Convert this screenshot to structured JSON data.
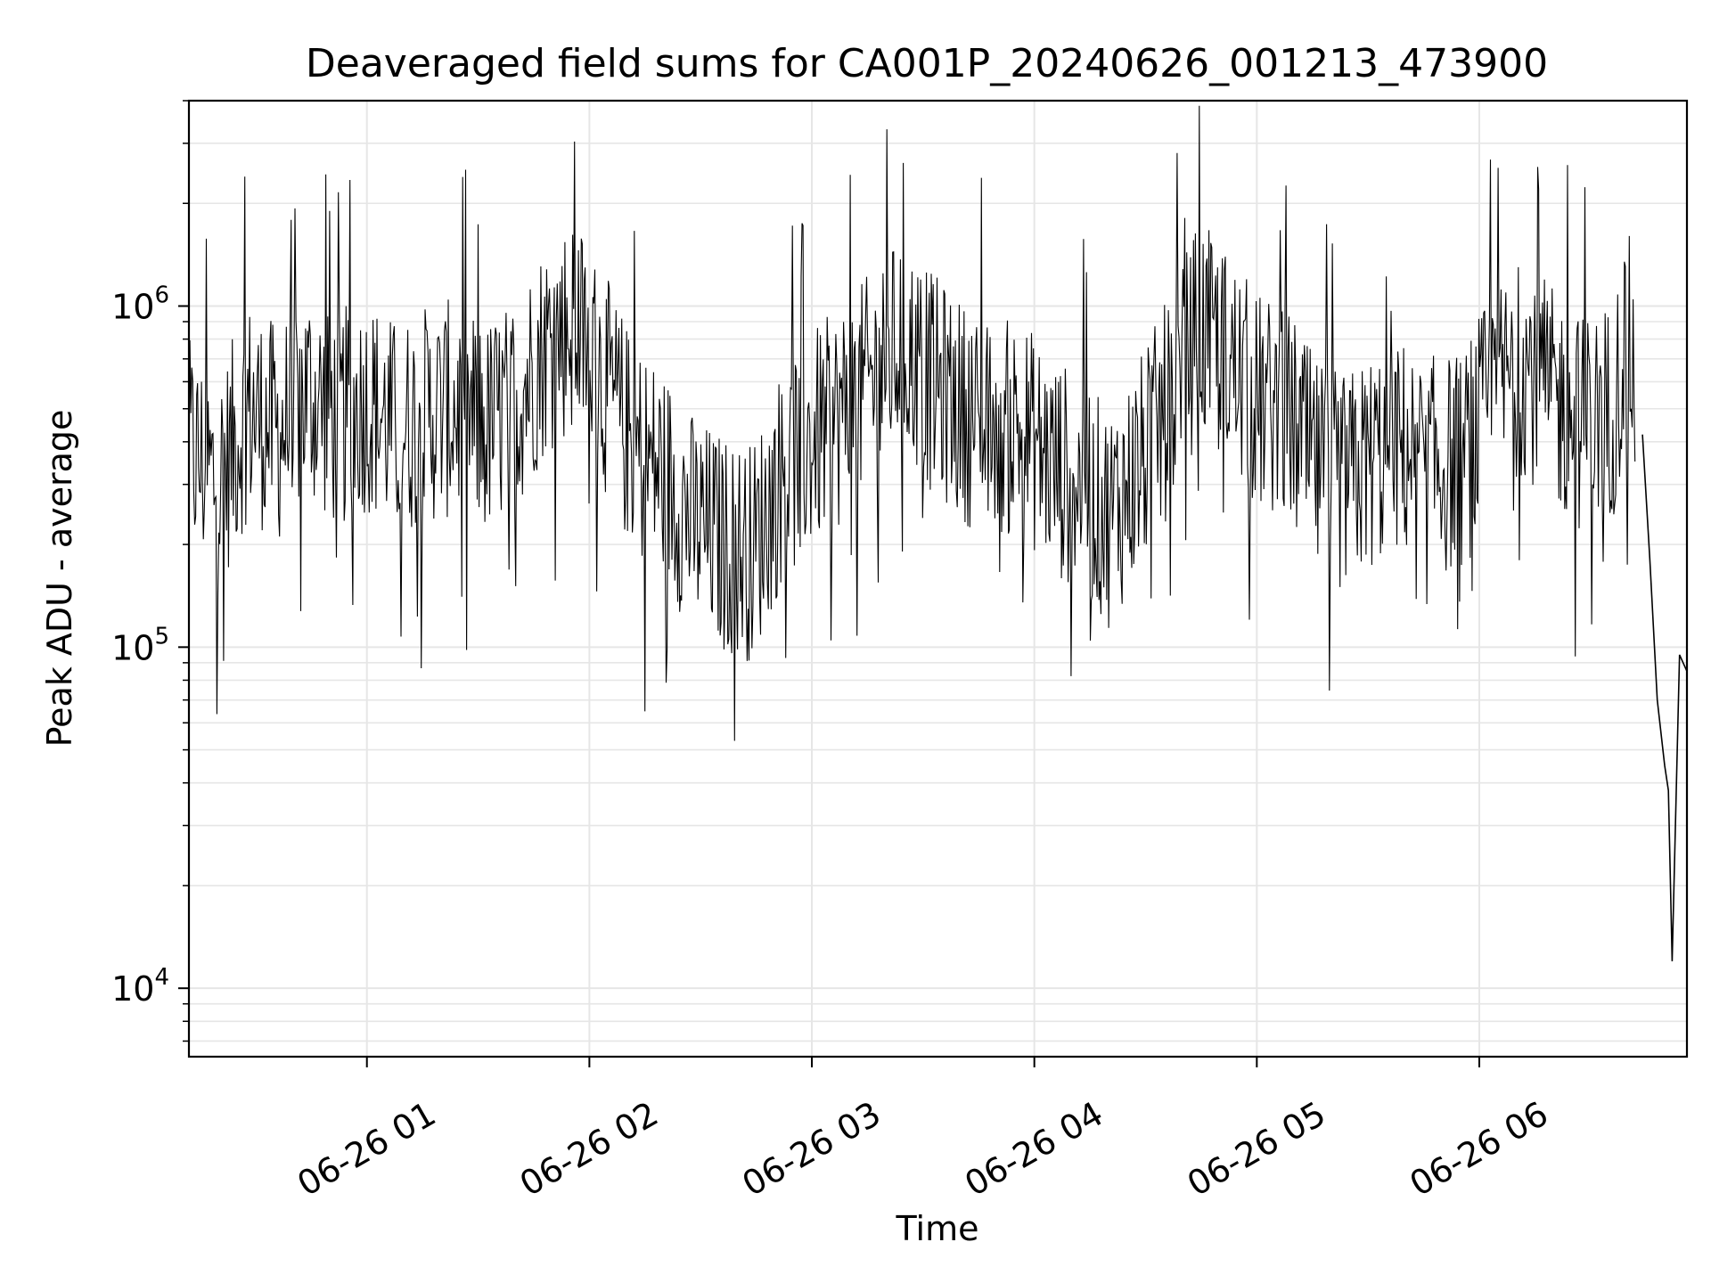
{
  "chart_data": {
    "type": "line",
    "title": "Deaveraged field sums for CA001P_20240626_001213_473900",
    "xlabel": "Time",
    "ylabel": "Peak ADU - average",
    "x_scale": "time",
    "y_scale": "log",
    "xlim": [
      "2024-06-26 00:12",
      "2024-06-26 06:56"
    ],
    "ylim": [
      6300,
      4000000
    ],
    "x_tick_labels": [
      "06-26 01",
      "06-26 02",
      "06-26 03",
      "06-26 04",
      "06-26 05",
      "06-26 06"
    ],
    "y_tick_labels": [
      {
        "base": "10",
        "exp": "6"
      },
      {
        "base": "10",
        "exp": "5"
      },
      {
        "base": "10",
        "exp": "4"
      }
    ],
    "grid": true,
    "line_color": "#000000",
    "grid_color": "#e6e6e6",
    "series": [
      {
        "x": [
          "2024-06-26 00:12",
          "2024-06-26 00:20",
          "2024-06-26 00:28",
          "2024-06-26 00:36",
          "2024-06-26 00:44",
          "2024-06-26 00:52",
          "2024-06-26 01:00",
          "2024-06-26 01:08",
          "2024-06-26 01:16",
          "2024-06-26 01:24",
          "2024-06-26 01:32",
          "2024-06-26 01:40",
          "2024-06-26 01:48",
          "2024-06-26 01:56",
          "2024-06-26 02:04",
          "2024-06-26 02:12",
          "2024-06-26 02:20",
          "2024-06-26 02:28",
          "2024-06-26 02:36",
          "2024-06-26 02:44",
          "2024-06-26 02:52",
          "2024-06-26 03:00",
          "2024-06-26 03:08",
          "2024-06-26 03:16",
          "2024-06-26 03:24",
          "2024-06-26 03:32",
          "2024-06-26 03:40",
          "2024-06-26 03:48",
          "2024-06-26 03:56",
          "2024-06-26 04:04",
          "2024-06-26 04:12",
          "2024-06-26 04:20",
          "2024-06-26 04:28",
          "2024-06-26 04:36",
          "2024-06-26 04:44",
          "2024-06-26 04:52",
          "2024-06-26 05:00",
          "2024-06-26 05:08",
          "2024-06-26 05:16",
          "2024-06-26 05:24",
          "2024-06-26 05:32",
          "2024-06-26 05:40",
          "2024-06-26 05:48",
          "2024-06-26 05:56",
          "2024-06-26 06:04",
          "2024-06-26 06:12",
          "2024-06-26 06:20",
          "2024-06-26 06:28",
          "2024-06-26 06:36",
          "2024-06-26 06:40",
          "2024-06-26 06:44",
          "2024-06-26 06:46",
          "2024-06-26 06:48",
          "2024-06-26 06:50",
          "2024-06-26 06:51",
          "2024-06-26 06:52",
          "2024-06-26 06:54",
          "2024-06-26 06:56"
        ],
        "y": [
          380000,
          300000,
          500000,
          420000,
          560000,
          460000,
          520000,
          430000,
          480000,
          500000,
          430000,
          520000,
          760000,
          900000,
          600000,
          380000,
          320000,
          230000,
          200000,
          190000,
          320000,
          400000,
          480000,
          600000,
          780000,
          600000,
          500000,
          420000,
          450000,
          350000,
          300000,
          240000,
          330000,
          500000,
          850000,
          700000,
          520000,
          480000,
          330000,
          300000,
          360000,
          380000,
          340000,
          350000,
          560000,
          680000,
          530000,
          450000,
          500000,
          820000,
          420000,
          180000,
          70000,
          45000,
          38000,
          12000,
          95000,
          85000
        ]
      }
    ]
  }
}
